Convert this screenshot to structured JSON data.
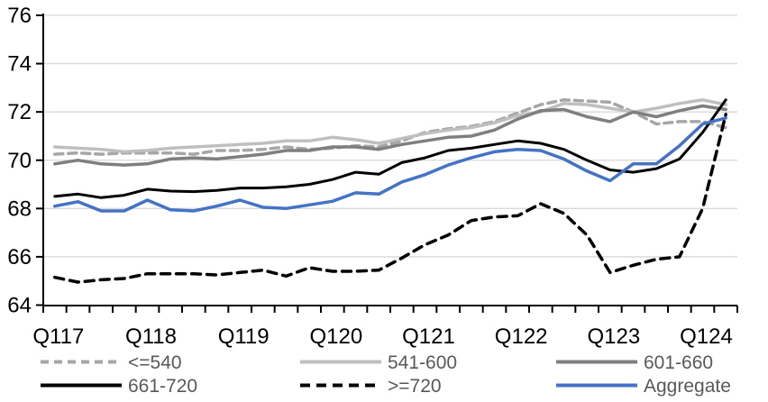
{
  "chart_data": {
    "type": "line",
    "title": "",
    "xlabel": "",
    "ylabel": "",
    "x_tick_labels": [
      "Q117",
      "Q118",
      "Q119",
      "Q120",
      "Q121",
      "Q122",
      "Q123",
      "Q124"
    ],
    "x_tick_indices": [
      0,
      4,
      8,
      12,
      16,
      20,
      24,
      28
    ],
    "n_points": 30,
    "x_unit": "quarter",
    "ylim": [
      64,
      76
    ],
    "y_ticks": [
      64,
      66,
      68,
      70,
      72,
      74,
      76
    ],
    "grid": "horizontal",
    "legend_position": "bottom",
    "legend_rows": [
      [
        0,
        1,
        2
      ],
      [
        3,
        4,
        5
      ]
    ],
    "style_colors": {
      "gridline": "#D9D9D9",
      "axis": "#000000",
      "axis_text": "#000000",
      "legend_text": "#595959",
      "background": "#FFFFFF",
      "accent_blue": "#4472C4"
    },
    "series": [
      {
        "name": "<=540",
        "color": "#A6A6A6",
        "style": "dashed",
        "width": 3.5,
        "values": [
          70.25,
          70.3,
          70.25,
          70.3,
          70.3,
          70.3,
          70.25,
          70.4,
          70.4,
          70.45,
          70.55,
          70.45,
          70.5,
          70.6,
          70.55,
          70.8,
          71.15,
          71.3,
          71.4,
          71.6,
          71.95,
          72.3,
          72.5,
          72.45,
          72.4,
          72.0,
          71.5,
          71.6,
          71.6,
          71.35
        ]
      },
      {
        "name": "541-600",
        "color": "#BFBFBF",
        "style": "solid",
        "width": 3.5,
        "values": [
          70.55,
          70.5,
          70.45,
          70.35,
          70.4,
          70.5,
          70.55,
          70.6,
          70.65,
          70.7,
          70.8,
          70.8,
          70.95,
          70.85,
          70.7,
          70.9,
          71.1,
          71.25,
          71.35,
          71.55,
          71.85,
          72.0,
          72.35,
          72.3,
          72.15,
          72.0,
          72.15,
          72.35,
          72.5,
          72.3
        ]
      },
      {
        "name": "601-660",
        "color": "#7F7F7F",
        "style": "solid",
        "width": 3.5,
        "values": [
          69.85,
          70.0,
          69.85,
          69.8,
          69.85,
          70.05,
          70.1,
          70.05,
          70.15,
          70.25,
          70.4,
          70.4,
          70.55,
          70.55,
          70.45,
          70.65,
          70.8,
          70.95,
          71.0,
          71.25,
          71.7,
          72.05,
          72.1,
          71.8,
          71.6,
          72.0,
          71.8,
          72.05,
          72.25,
          72.1
        ]
      },
      {
        "name": "661-720",
        "color": "#000000",
        "style": "solid",
        "width": 3,
        "values": [
          68.5,
          68.6,
          68.45,
          68.55,
          68.8,
          68.72,
          68.7,
          68.75,
          68.85,
          68.85,
          68.9,
          69.0,
          69.2,
          69.5,
          69.42,
          69.9,
          70.1,
          70.4,
          70.5,
          70.65,
          70.8,
          70.7,
          70.45,
          70.0,
          69.6,
          69.5,
          69.65,
          70.05,
          71.15,
          72.5
        ]
      },
      {
        "name": ">=720",
        "color": "#000000",
        "style": "dashed",
        "width": 3.5,
        "values": [
          65.15,
          64.95,
          65.05,
          65.1,
          65.3,
          65.3,
          65.3,
          65.25,
          65.35,
          65.45,
          65.2,
          65.55,
          65.4,
          65.4,
          65.45,
          65.95,
          66.5,
          66.9,
          67.5,
          67.65,
          67.7,
          68.2,
          67.8,
          66.9,
          65.35,
          65.65,
          65.9,
          66.0,
          68.0,
          71.9
        ]
      },
      {
        "name": "Aggregate",
        "color": "#4472C4",
        "style": "solid",
        "width": 3.5,
        "values": [
          68.1,
          68.28,
          67.9,
          67.9,
          68.35,
          67.95,
          67.9,
          68.1,
          68.35,
          68.05,
          68.0,
          68.15,
          68.3,
          68.65,
          68.6,
          69.1,
          69.4,
          69.8,
          70.1,
          70.35,
          70.45,
          70.4,
          70.05,
          69.55,
          69.15,
          69.85,
          69.85,
          70.6,
          71.5,
          71.75
        ]
      }
    ]
  }
}
